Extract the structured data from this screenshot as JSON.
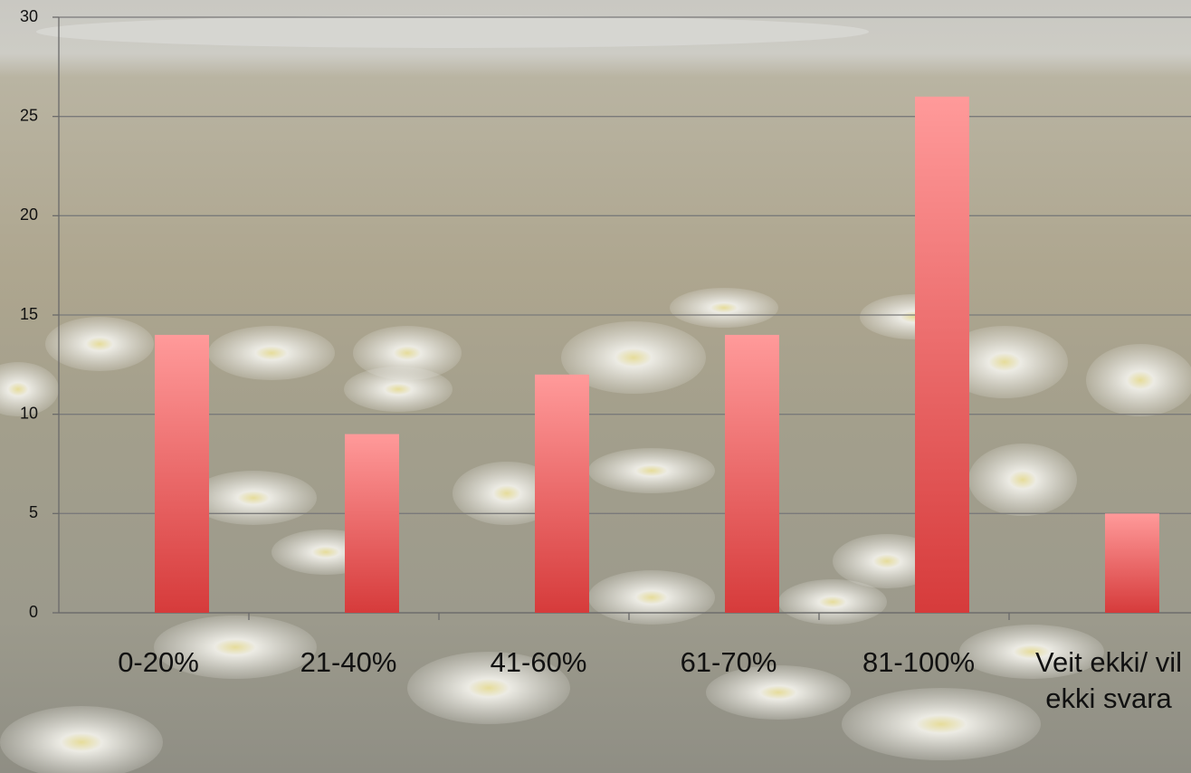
{
  "chart_data": {
    "type": "bar",
    "categories": [
      "0-20%",
      "21-40%",
      "41-60%",
      "61-70%",
      "81-100%",
      "Veit ekki/ vil ekki svara"
    ],
    "values": [
      14,
      9,
      12,
      14,
      26,
      5
    ],
    "color": "#d63b3b",
    "ylim": [
      0,
      30
    ],
    "yticks": [
      0,
      5,
      10,
      15,
      20,
      25,
      30
    ],
    "grid": true
  }
}
